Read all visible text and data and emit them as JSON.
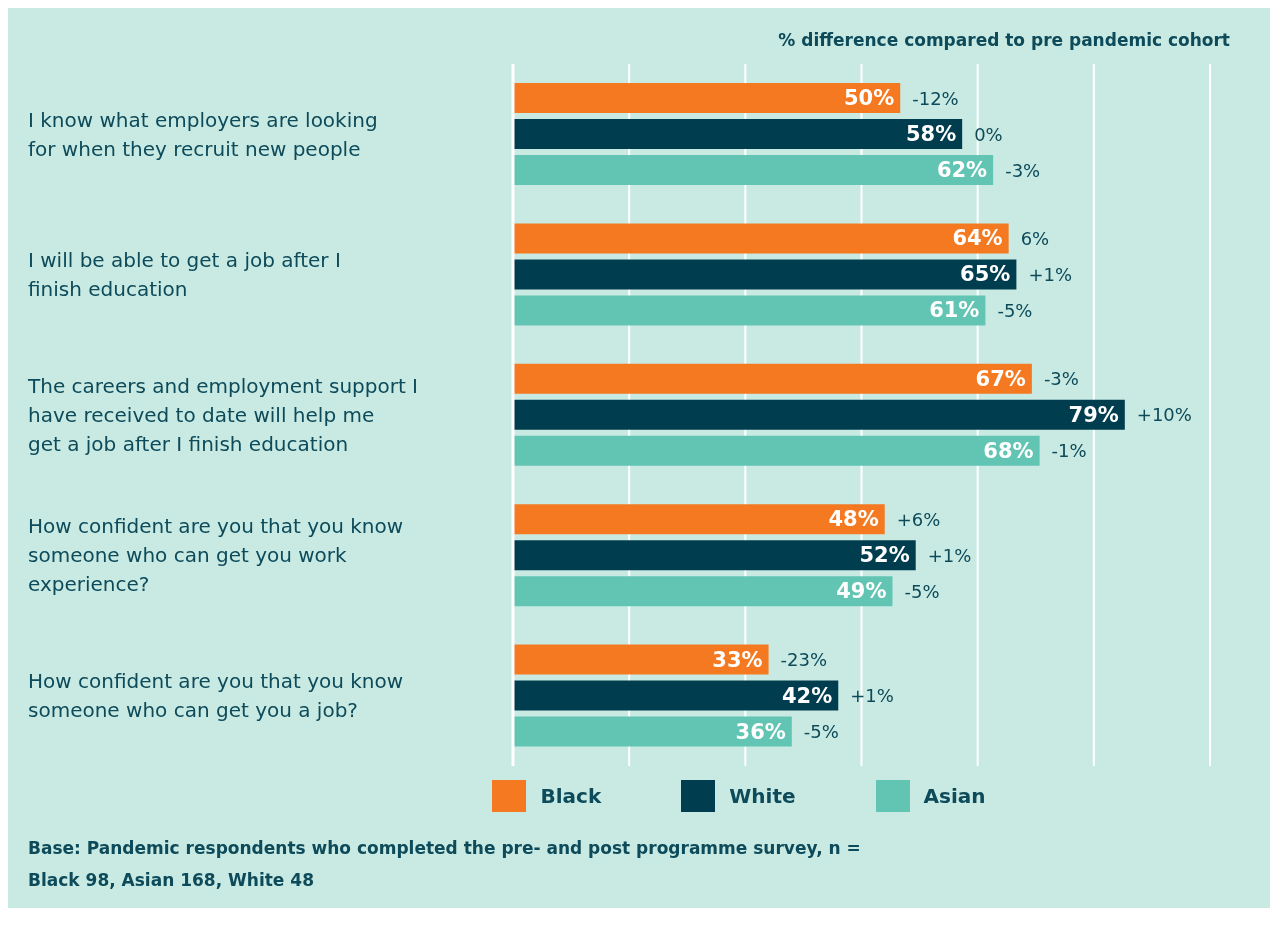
{
  "chart_data": {
    "type": "bar",
    "orientation": "horizontal",
    "title": "% difference compared to pre pandemic cohort",
    "categories": [
      "I know what employers are looking for when they recruit new people",
      "I will be able to get a job after I finish education",
      "The careers and employment support I have received to date will help me get a job after I finish education",
      "How confident are you that you know someone who can get you work experience?",
      "How confident are you that you know someone who can get you a job?"
    ],
    "series": [
      {
        "name": "Black",
        "color": "#f47920",
        "values": [
          50,
          64,
          67,
          48,
          33
        ],
        "value_labels": [
          "50%",
          "64%",
          "67%",
          "48%",
          "33%"
        ]
      },
      {
        "name": "White",
        "color": "#003d4f",
        "values": [
          58,
          65,
          79,
          52,
          42
        ],
        "value_labels": [
          "58%",
          "65%",
          "79%",
          "52%",
          "42%"
        ]
      },
      {
        "name": "Asian",
        "color": "#62c5b3",
        "values": [
          62,
          61,
          68,
          49,
          36
        ],
        "value_labels": [
          "62%",
          "61%",
          "68%",
          "49%",
          "36%"
        ]
      }
    ],
    "xlim": [
      0,
      90
    ],
    "tick_labels": "y",
    "grid": "x",
    "legend": "bottom",
    "annotations": [
      "-12%",
      "0%",
      "-3%",
      "6%",
      "+1%",
      "-5%",
      "-3%",
      "+10%",
      "-1%",
      "+6%",
      "+1%",
      "-5%",
      "-23%",
      "+1%",
      "-5%",
      "Base: Pandemic respondents who completed the pre- and post programme survey, n = Black 98, Asian 168, White 48"
    ]
  }
}
